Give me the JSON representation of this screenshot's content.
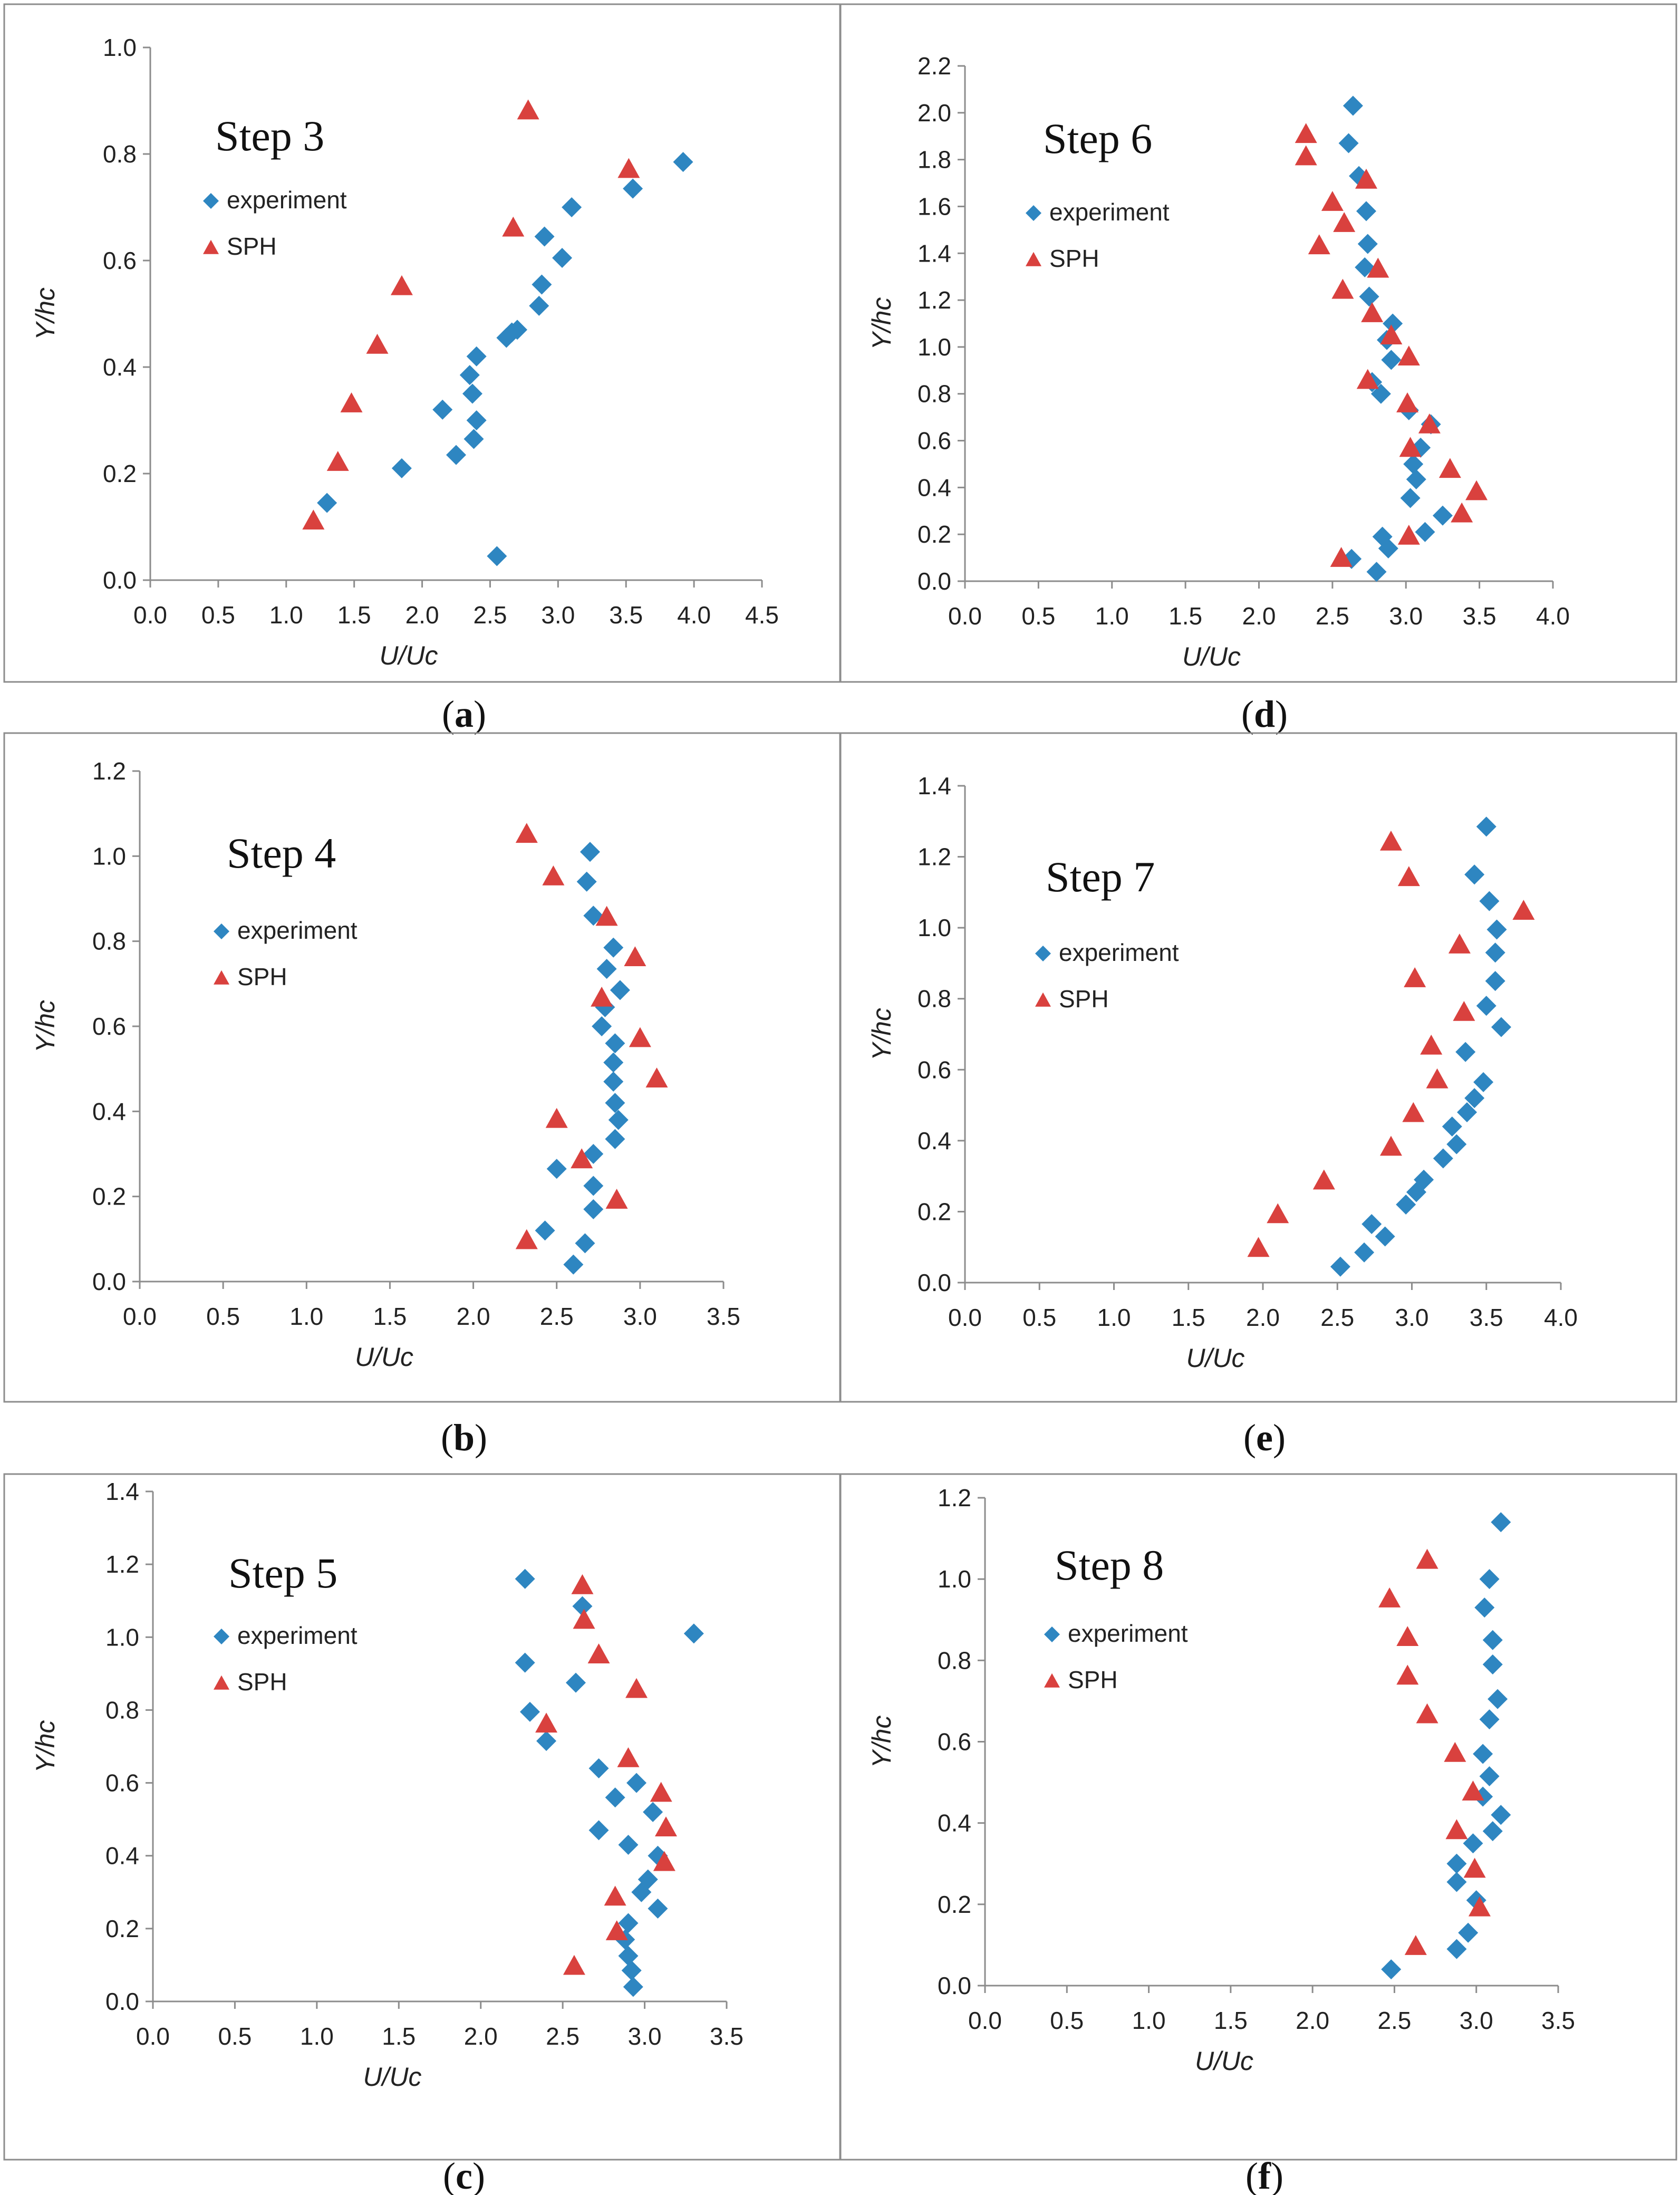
{
  "colors": {
    "experiment": "#2E86C1",
    "sph": "#D9413E",
    "axis": "#8C8C8C",
    "frame": "#8C8C8C"
  },
  "chart_data": [
    {
      "type": "scatter",
      "title": "Step 3",
      "caption": "a",
      "xlabel": "U/Uc",
      "ylabel": "Y/hc",
      "xlim": [
        0,
        4.5
      ],
      "ylim": [
        0,
        1.0
      ],
      "xticks": [
        "0.0",
        "0.5",
        "1.0",
        "1.5",
        "2.0",
        "2.5",
        "3.0",
        "3.5",
        "4.0",
        "4.5"
      ],
      "yticks": [
        "0.0",
        "0.2",
        "0.4",
        "0.6",
        "0.8",
        "1.0"
      ],
      "legend_position": "upper-left",
      "series": [
        {
          "name": "experiment",
          "marker": "diamond",
          "points": [
            [
              2.55,
              0.045
            ],
            [
              1.3,
              0.145
            ],
            [
              1.85,
              0.21
            ],
            [
              2.25,
              0.235
            ],
            [
              2.38,
              0.265
            ],
            [
              2.4,
              0.3
            ],
            [
              2.15,
              0.32
            ],
            [
              2.37,
              0.35
            ],
            [
              2.35,
              0.385
            ],
            [
              2.4,
              0.42
            ],
            [
              2.62,
              0.455
            ],
            [
              2.66,
              0.465
            ],
            [
              2.7,
              0.47
            ],
            [
              2.86,
              0.515
            ],
            [
              2.88,
              0.555
            ],
            [
              3.03,
              0.605
            ],
            [
              2.9,
              0.645
            ],
            [
              3.1,
              0.7
            ],
            [
              3.55,
              0.735
            ],
            [
              3.92,
              0.785
            ]
          ]
        },
        {
          "name": "SPH",
          "marker": "triangle",
          "points": [
            [
              1.2,
              0.11
            ],
            [
              1.38,
              0.22
            ],
            [
              1.48,
              0.33
            ],
            [
              1.67,
              0.44
            ],
            [
              1.85,
              0.55
            ],
            [
              2.67,
              0.66
            ],
            [
              3.52,
              0.77
            ],
            [
              2.78,
              0.88
            ]
          ]
        }
      ]
    },
    {
      "type": "scatter",
      "title": "Step 4",
      "caption": "b",
      "xlabel": "U/Uc",
      "ylabel": "Y/hc",
      "xlim": [
        0,
        3.5
      ],
      "ylim": [
        0,
        1.2
      ],
      "xticks": [
        "0.0",
        "0.5",
        "1.0",
        "1.5",
        "2.0",
        "2.5",
        "3.0",
        "3.5"
      ],
      "yticks": [
        "0.0",
        "0.2",
        "0.4",
        "0.6",
        "0.8",
        "1.0",
        "1.2"
      ],
      "legend_position": "upper-left",
      "series": [
        {
          "name": "experiment",
          "marker": "diamond",
          "points": [
            [
              2.6,
              0.04
            ],
            [
              2.67,
              0.09
            ],
            [
              2.43,
              0.12
            ],
            [
              2.72,
              0.17
            ],
            [
              2.72,
              0.225
            ],
            [
              2.5,
              0.265
            ],
            [
              2.72,
              0.3
            ],
            [
              2.85,
              0.335
            ],
            [
              2.87,
              0.38
            ],
            [
              2.85,
              0.42
            ],
            [
              2.84,
              0.47
            ],
            [
              2.84,
              0.515
            ],
            [
              2.85,
              0.56
            ],
            [
              2.77,
              0.6
            ],
            [
              2.79,
              0.645
            ],
            [
              2.88,
              0.685
            ],
            [
              2.8,
              0.735
            ],
            [
              2.84,
              0.785
            ],
            [
              2.72,
              0.86
            ],
            [
              2.68,
              0.94
            ],
            [
              2.7,
              1.01
            ]
          ]
        },
        {
          "name": "SPH",
          "marker": "triangle",
          "points": [
            [
              2.32,
              0.095
            ],
            [
              2.86,
              0.19
            ],
            [
              2.65,
              0.285
            ],
            [
              2.5,
              0.38
            ],
            [
              3.1,
              0.475
            ],
            [
              3.0,
              0.57
            ],
            [
              2.77,
              0.665
            ],
            [
              2.97,
              0.76
            ],
            [
              2.8,
              0.855
            ],
            [
              2.48,
              0.95
            ],
            [
              2.32,
              1.05
            ]
          ]
        }
      ]
    },
    {
      "type": "scatter",
      "title": "Step 5",
      "caption": "c",
      "xlabel": "U/Uc",
      "ylabel": "Y/hc",
      "xlim": [
        0,
        3.5
      ],
      "ylim": [
        0,
        1.4
      ],
      "xticks": [
        "0.0",
        "0.5",
        "1.0",
        "1.5",
        "2.0",
        "2.5",
        "3.0",
        "3.5"
      ],
      "yticks": [
        "0.0",
        "0.2",
        "0.4",
        "0.6",
        "0.8",
        "1.0",
        "1.2",
        "1.4"
      ],
      "legend_position": "upper-left",
      "series": [
        {
          "name": "experiment",
          "marker": "diamond",
          "points": [
            [
              2.93,
              0.04
            ],
            [
              2.92,
              0.085
            ],
            [
              2.9,
              0.125
            ],
            [
              2.88,
              0.17
            ],
            [
              2.9,
              0.215
            ],
            [
              3.08,
              0.255
            ],
            [
              2.98,
              0.3
            ],
            [
              3.02,
              0.335
            ],
            [
              3.08,
              0.4
            ],
            [
              2.9,
              0.43
            ],
            [
              2.72,
              0.47
            ],
            [
              3.05,
              0.52
            ],
            [
              2.82,
              0.56
            ],
            [
              2.95,
              0.6
            ],
            [
              2.72,
              0.64
            ],
            [
              2.4,
              0.715
            ],
            [
              2.3,
              0.795
            ],
            [
              2.27,
              0.93
            ],
            [
              2.58,
              0.875
            ],
            [
              2.62,
              1.085
            ],
            [
              3.3,
              1.01
            ],
            [
              2.27,
              1.16
            ]
          ]
        },
        {
          "name": "SPH",
          "marker": "triangle",
          "points": [
            [
              2.57,
              0.095
            ],
            [
              2.83,
              0.19
            ],
            [
              2.82,
              0.285
            ],
            [
              3.12,
              0.38
            ],
            [
              3.13,
              0.475
            ],
            [
              3.1,
              0.57
            ],
            [
              2.9,
              0.665
            ],
            [
              2.4,
              0.76
            ],
            [
              2.95,
              0.855
            ],
            [
              2.72,
              0.95
            ],
            [
              2.63,
              1.045
            ],
            [
              2.62,
              1.14
            ]
          ]
        }
      ]
    },
    {
      "type": "scatter",
      "title": "Step 6",
      "caption": "d",
      "xlabel": "U/Uc",
      "ylabel": "Y/hc",
      "xlim": [
        0,
        4.0
      ],
      "ylim": [
        0,
        2.2
      ],
      "xticks": [
        "0.0",
        "0.5",
        "1.0",
        "1.5",
        "2.0",
        "2.5",
        "3.0",
        "3.5",
        "4.0"
      ],
      "yticks": [
        "0.0",
        "0.2",
        "0.4",
        "0.6",
        "0.8",
        "1.0",
        "1.2",
        "1.4",
        "1.6",
        "1.8",
        "2.0",
        "2.2"
      ],
      "legend_position": "upper-left",
      "series": [
        {
          "name": "experiment",
          "marker": "diamond",
          "points": [
            [
              2.8,
              0.04
            ],
            [
              2.63,
              0.095
            ],
            [
              2.88,
              0.14
            ],
            [
              2.84,
              0.19
            ],
            [
              3.13,
              0.21
            ],
            [
              3.25,
              0.28
            ],
            [
              3.03,
              0.355
            ],
            [
              3.07,
              0.435
            ],
            [
              3.05,
              0.5
            ],
            [
              3.1,
              0.57
            ],
            [
              3.17,
              0.67
            ],
            [
              3.02,
              0.73
            ],
            [
              2.83,
              0.8
            ],
            [
              2.77,
              0.85
            ],
            [
              2.9,
              0.945
            ],
            [
              2.87,
              1.03
            ],
            [
              2.91,
              1.1
            ],
            [
              2.75,
              1.215
            ],
            [
              2.72,
              1.34
            ],
            [
              2.74,
              1.44
            ],
            [
              2.73,
              1.58
            ],
            [
              2.68,
              1.73
            ],
            [
              2.61,
              1.87
            ],
            [
              2.64,
              2.03
            ]
          ]
        },
        {
          "name": "SPH",
          "marker": "triangle",
          "points": [
            [
              2.56,
              0.095
            ],
            [
              3.02,
              0.19
            ],
            [
              3.38,
              0.285
            ],
            [
              3.48,
              0.38
            ],
            [
              3.3,
              0.475
            ],
            [
              3.03,
              0.565
            ],
            [
              3.16,
              0.665
            ],
            [
              3.01,
              0.755
            ],
            [
              2.74,
              0.855
            ],
            [
              3.02,
              0.955
            ],
            [
              2.9,
              1.045
            ],
            [
              2.77,
              1.14
            ],
            [
              2.57,
              1.24
            ],
            [
              2.81,
              1.33
            ],
            [
              2.41,
              1.43
            ],
            [
              2.58,
              1.525
            ],
            [
              2.5,
              1.615
            ],
            [
              2.73,
              1.71
            ],
            [
              2.32,
              1.81
            ],
            [
              2.32,
              1.905
            ]
          ]
        }
      ]
    },
    {
      "type": "scatter",
      "title": "Step 7",
      "caption": "e",
      "xlabel": "U/Uc",
      "ylabel": "Y/hc",
      "xlim": [
        0,
        4.0
      ],
      "ylim": [
        0,
        1.4
      ],
      "xticks": [
        "0.0",
        "0.5",
        "1.0",
        "1.5",
        "2.0",
        "2.5",
        "3.0",
        "3.5",
        "4.0"
      ],
      "yticks": [
        "0.0",
        "0.2",
        "0.4",
        "0.6",
        "0.8",
        "1.0",
        "1.2",
        "1.4"
      ],
      "legend_position": "upper-left",
      "series": [
        {
          "name": "experiment",
          "marker": "diamond",
          "points": [
            [
              2.52,
              0.045
            ],
            [
              2.68,
              0.085
            ],
            [
              2.82,
              0.13
            ],
            [
              2.73,
              0.165
            ],
            [
              2.96,
              0.22
            ],
            [
              3.03,
              0.255
            ],
            [
              3.08,
              0.29
            ],
            [
              3.21,
              0.35
            ],
            [
              3.3,
              0.39
            ],
            [
              3.27,
              0.44
            ],
            [
              3.37,
              0.48
            ],
            [
              3.42,
              0.52
            ],
            [
              3.48,
              0.565
            ],
            [
              3.36,
              0.65
            ],
            [
              3.6,
              0.72
            ],
            [
              3.5,
              0.78
            ],
            [
              3.56,
              0.85
            ],
            [
              3.56,
              0.93
            ],
            [
              3.57,
              0.995
            ],
            [
              3.52,
              1.075
            ],
            [
              3.42,
              1.15
            ],
            [
              3.5,
              1.285
            ]
          ]
        },
        {
          "name": "SPH",
          "marker": "triangle",
          "points": [
            [
              1.97,
              0.095
            ],
            [
              2.1,
              0.19
            ],
            [
              2.41,
              0.285
            ],
            [
              2.86,
              0.38
            ],
            [
              3.01,
              0.475
            ],
            [
              3.17,
              0.57
            ],
            [
              3.13,
              0.665
            ],
            [
              3.35,
              0.76
            ],
            [
              3.02,
              0.855
            ],
            [
              3.32,
              0.95
            ],
            [
              3.75,
              1.045
            ],
            [
              2.98,
              1.14
            ],
            [
              2.86,
              1.24
            ]
          ]
        }
      ]
    },
    {
      "type": "scatter",
      "title": "Step 8",
      "caption": "f",
      "xlabel": "U/Uc",
      "ylabel": "Y/hc",
      "xlim": [
        0,
        3.5
      ],
      "ylim": [
        0,
        1.2
      ],
      "xticks": [
        "0.0",
        "0.5",
        "1.0",
        "1.5",
        "2.0",
        "2.5",
        "3.0",
        "3.5"
      ],
      "yticks": [
        "0.0",
        "0.2",
        "0.4",
        "0.6",
        "0.8",
        "1.0",
        "1.2"
      ],
      "legend_position": "upper-left",
      "series": [
        {
          "name": "experiment",
          "marker": "diamond",
          "points": [
            [
              2.48,
              0.04
            ],
            [
              2.88,
              0.09
            ],
            [
              2.95,
              0.13
            ],
            [
              3.0,
              0.21
            ],
            [
              2.88,
              0.255
            ],
            [
              2.88,
              0.3
            ],
            [
              2.98,
              0.35
            ],
            [
              3.1,
              0.38
            ],
            [
              3.15,
              0.42
            ],
            [
              3.04,
              0.465
            ],
            [
              3.08,
              0.515
            ],
            [
              3.04,
              0.57
            ],
            [
              3.08,
              0.655
            ],
            [
              3.13,
              0.705
            ],
            [
              3.1,
              0.79
            ],
            [
              3.1,
              0.85
            ],
            [
              3.05,
              0.93
            ],
            [
              3.08,
              1.0
            ],
            [
              3.15,
              1.14
            ]
          ]
        },
        {
          "name": "SPH",
          "marker": "triangle",
          "points": [
            [
              2.63,
              0.095
            ],
            [
              3.02,
              0.19
            ],
            [
              2.99,
              0.285
            ],
            [
              2.88,
              0.38
            ],
            [
              2.98,
              0.475
            ],
            [
              2.87,
              0.57
            ],
            [
              2.7,
              0.665
            ],
            [
              2.58,
              0.76
            ],
            [
              2.58,
              0.855
            ],
            [
              2.47,
              0.95
            ],
            [
              2.7,
              1.045
            ]
          ]
        }
      ]
    }
  ]
}
